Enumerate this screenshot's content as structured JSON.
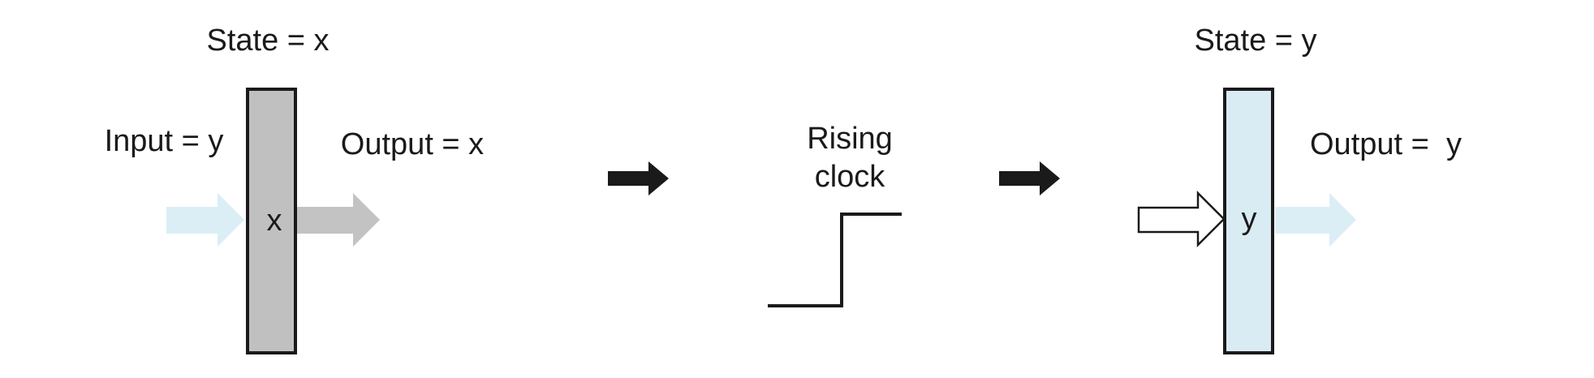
{
  "before": {
    "state_label": "State = x",
    "input_label": "Input = y",
    "output_label": "Output = x",
    "register_value": "x"
  },
  "clock": {
    "label_line1": "Rising",
    "label_line2": "clock"
  },
  "after": {
    "state_label": "State = y",
    "output_label": "Output =  y",
    "register_value": "y"
  },
  "colors": {
    "ink": "#1a1a1a",
    "register_before_fill": "#c0c0c0",
    "register_after_fill": "#d9ebf3",
    "input_arrow_light_blue": "#dbeef6",
    "output_arrow_gray": "#c3c3c3",
    "output_arrow_light_blue": "#dbeef6"
  }
}
